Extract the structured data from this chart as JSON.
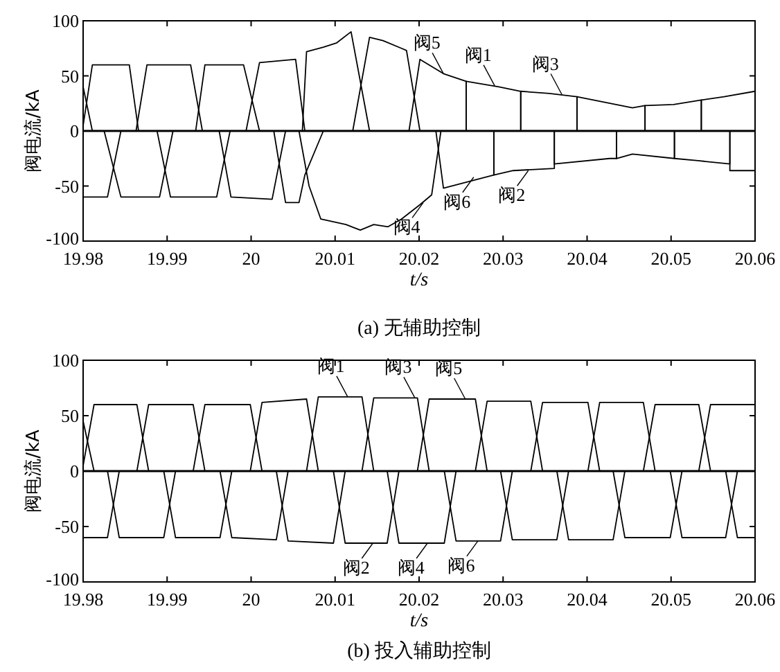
{
  "chart_data": [
    {
      "type": "line",
      "title": "(a) 无辅助控制",
      "xlabel": "t/s",
      "ylabel": "阀电流/kA",
      "xlim": [
        19.98,
        20.06
      ],
      "xticks": [
        19.98,
        19.99,
        20,
        20.01,
        20.02,
        20.03,
        20.04,
        20.05,
        20.06
      ],
      "ylim": [
        -100,
        100
      ],
      "yticks": [
        -100,
        -50,
        0,
        50,
        100
      ],
      "grid": false,
      "ref_lines": [
        {
          "axis": "y",
          "value": 0,
          "color": "#000000"
        }
      ],
      "series": [
        {
          "color": "#000000",
          "x": [
            19.98,
            19.9863,
            19.9876,
            19.9928,
            19.9942,
            20.0061,
            20.0066,
            20.0086,
            20.0102,
            20.0119,
            20.0141,
            20.0256,
            20.0256,
            20.0295,
            20.0321,
            20.0321,
            20.0469,
            20.0469,
            20.0503,
            20.0536,
            20.0536,
            20.06
          ],
          "values": [
            0,
            0,
            60,
            60,
            0,
            0,
            72,
            76,
            80,
            90,
            0,
            0,
            45,
            40,
            36,
            0,
            0,
            23,
            24,
            28,
            0,
            0
          ]
        },
        {
          "color": "#000000",
          "x": [
            19.98,
            19.9811,
            19.9934,
            19.9945,
            19.9991,
            20.001,
            20.0121,
            20.0141,
            20.0157,
            20.0179,
            20.0185,
            20.0201,
            20.0321,
            20.0321,
            20.0355,
            20.0388,
            20.0388,
            20.0536,
            20.0536,
            20.0563,
            20.06
          ],
          "values": [
            40,
            0,
            0,
            60,
            60,
            0,
            0,
            85,
            82,
            75,
            73,
            0,
            0,
            36,
            34,
            31,
            0,
            0,
            28,
            31,
            36
          ]
        },
        {
          "color": "#000000",
          "x": [
            19.98,
            19.9811,
            19.9855,
            19.9866,
            19.9994,
            20.001,
            20.0053,
            20.0064,
            20.0188,
            20.0201,
            20.0229,
            20.0256,
            20.0256,
            20.0388,
            20.0388,
            20.0421,
            20.0454,
            20.0469,
            20.0469,
            20.06
          ],
          "values": [
            5,
            60,
            60,
            0,
            0,
            62,
            65,
            0,
            0,
            65,
            52,
            45,
            0,
            0,
            31,
            26,
            21,
            23,
            0,
            0
          ]
        },
        {
          "color": "#000000",
          "x": [
            19.98,
            19.9888,
            19.9904,
            19.9959,
            19.9975,
            20.0289,
            20.0289,
            20.0312,
            20.0361,
            20.0361,
            20.0504,
            20.0504,
            20.0532,
            20.057,
            20.057,
            20.06
          ],
          "values": [
            0,
            0,
            -60,
            -60,
            0,
            0,
            -40,
            -36,
            -34,
            0,
            0,
            -25,
            -27,
            -30,
            0,
            0
          ]
        },
        {
          "color": "#000000",
          "x": [
            19.98,
            19.9829,
            19.9845,
            19.9962,
            19.9976,
            20.0025,
            20.0041,
            20.0057,
            20.0069,
            20.0083,
            20.0113,
            20.013,
            20.0146,
            20.0163,
            20.0179,
            20.0201,
            20.0215,
            20.0226,
            20.0361,
            20.0361,
            20.0427,
            20.0435,
            20.0435,
            20.057,
            20.057,
            20.06
          ],
          "values": [
            -60,
            -60,
            0,
            0,
            -60,
            -62,
            0,
            0,
            -50,
            -80,
            -85,
            -90,
            -85,
            -87,
            -80,
            -67,
            -58,
            0,
            0,
            -30,
            -25,
            -25,
            0,
            0,
            -36,
            -36
          ]
        },
        {
          "color": "#000000",
          "x": [
            19.98,
            19.9825,
            19.9845,
            19.9891,
            19.9907,
            20.0027,
            20.0041,
            20.0057,
            20.0064,
            20.0086,
            20.022,
            20.0229,
            20.0289,
            20.0289,
            20.0435,
            20.0435,
            20.0454,
            20.0504,
            20.0504,
            20.06
          ],
          "values": [
            0,
            0,
            -60,
            -60,
            0,
            0,
            -65,
            -65,
            -40,
            0,
            0,
            -52,
            -40,
            0,
            0,
            -25,
            -21,
            -25,
            0,
            0
          ]
        }
      ],
      "annotations": [
        {
          "text": "阀5",
          "x": 20.0229,
          "y": 52
        },
        {
          "text": "阀1",
          "x": 20.029,
          "y": 41
        },
        {
          "text": "阀3",
          "x": 20.037,
          "y": 33
        },
        {
          "text": "阀4",
          "x": 20.0205,
          "y": -65
        },
        {
          "text": "阀6",
          "x": 20.0265,
          "y": -42
        },
        {
          "text": "阀2",
          "x": 20.033,
          "y": -36
        }
      ]
    },
    {
      "type": "line",
      "title": "(b) 投入辅助控制",
      "xlabel": "t/s",
      "ylabel": "阀电流/kA",
      "xlim": [
        19.98,
        20.06
      ],
      "xticks": [
        19.98,
        19.99,
        20,
        20.01,
        20.02,
        20.03,
        20.04,
        20.05,
        20.06
      ],
      "ylim": [
        -100,
        100
      ],
      "yticks": [
        -100,
        -50,
        0,
        50,
        100
      ],
      "grid": false,
      "ref_lines": [
        {
          "axis": "y",
          "value": 0,
          "color": "#000000"
        }
      ],
      "series": [
        {
          "color": "#000000",
          "x": [
            19.98,
            19.9864,
            19.9878,
            19.9931,
            19.9945,
            20.0066,
            20.008,
            20.0132,
            20.0146,
            20.0267,
            20.0281,
            20.0333,
            20.0347,
            20.0467,
            20.0481,
            20.0533,
            20.0547,
            20.06
          ],
          "values": [
            0,
            0,
            60,
            60,
            0,
            0,
            67,
            67,
            0,
            0,
            63,
            63,
            0,
            0,
            60,
            60,
            0,
            0
          ]
        },
        {
          "color": "#000000",
          "x": [
            19.98,
            19.9813,
            19.9931,
            19.9945,
            19.9999,
            20.0013,
            20.0132,
            20.0146,
            20.0198,
            20.0212,
            20.0333,
            20.0347,
            20.0401,
            20.0415,
            20.0533,
            20.0547,
            20.06
          ],
          "values": [
            45,
            0,
            0,
            60,
            60,
            0,
            0,
            66,
            66,
            0,
            0,
            62,
            62,
            0,
            0,
            60,
            60
          ]
        },
        {
          "color": "#000000",
          "x": [
            19.98,
            19.9813,
            19.9864,
            19.9878,
            19.9999,
            20.0013,
            20.0066,
            20.008,
            20.0198,
            20.0212,
            20.0267,
            20.0281,
            20.0401,
            20.0415,
            20.0467,
            20.0481,
            20.06
          ],
          "values": [
            5,
            60,
            60,
            0,
            0,
            62,
            65,
            0,
            0,
            65,
            65,
            0,
            0,
            62,
            62,
            0,
            0
          ]
        },
        {
          "color": "#000000",
          "x": [
            19.98,
            19.9896,
            19.991,
            19.9963,
            19.9977,
            20.0098,
            20.0112,
            20.0162,
            20.0176,
            20.0297,
            20.0311,
            20.0364,
            20.0378,
            20.0499,
            20.0513,
            20.0565,
            20.0579,
            20.06
          ],
          "values": [
            0,
            0,
            -60,
            -60,
            0,
            0,
            -65,
            -65,
            0,
            0,
            -62,
            -62,
            0,
            0,
            -60,
            -60,
            0,
            0
          ]
        },
        {
          "color": "#000000",
          "x": [
            19.98,
            19.9829,
            19.9843,
            19.9963,
            19.9977,
            20.003,
            20.0044,
            20.0162,
            20.0176,
            20.023,
            20.0244,
            20.0364,
            20.0378,
            20.0431,
            20.0445,
            20.0565,
            20.0579,
            20.06
          ],
          "values": [
            -60,
            -60,
            0,
            0,
            -60,
            -62,
            0,
            0,
            -65,
            -65,
            0,
            0,
            -62,
            -62,
            0,
            0,
            -60,
            -60
          ]
        },
        {
          "color": "#000000",
          "x": [
            19.98,
            19.9829,
            19.9843,
            19.9896,
            19.991,
            20.003,
            20.0044,
            20.0098,
            20.0112,
            20.023,
            20.0244,
            20.0297,
            20.0311,
            20.0431,
            20.0445,
            20.0499,
            20.0513,
            20.06
          ],
          "values": [
            0,
            0,
            -60,
            -60,
            0,
            0,
            -63,
            -65,
            0,
            0,
            -63,
            -63,
            0,
            0,
            -60,
            -60,
            0,
            0
          ]
        }
      ],
      "annotations": [
        {
          "text": "阀1",
          "x": 20.0115,
          "y": 67
        },
        {
          "text": "阀3",
          "x": 20.0195,
          "y": 66
        },
        {
          "text": "阀5",
          "x": 20.0255,
          "y": 65
        },
        {
          "text": "阀2",
          "x": 20.0145,
          "y": -65
        },
        {
          "text": "阀4",
          "x": 20.021,
          "y": -65
        },
        {
          "text": "阀6",
          "x": 20.027,
          "y": -63
        }
      ]
    }
  ]
}
